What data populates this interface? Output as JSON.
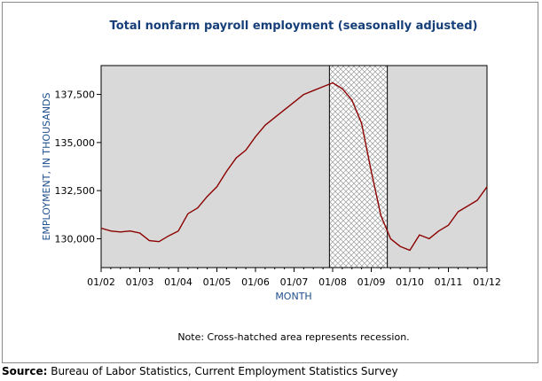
{
  "chart_data": {
    "type": "line",
    "title": "Total nonfarm payroll employment (seasonally adjusted)",
    "xlabel": "MONTH",
    "ylabel": "EMPLOYMENT, IN THOUSANDS",
    "x_tick_labels": [
      "01/02",
      "01/03",
      "01/04",
      "01/05",
      "01/06",
      "01/07",
      "01/08",
      "01/09",
      "01/10",
      "01/11",
      "01/12"
    ],
    "y_ticks": [
      130000,
      132500,
      135000,
      137500
    ],
    "y_tick_labels": [
      "130,000",
      "132,500",
      "135,000",
      "137,500"
    ],
    "xlim": [
      "2002-01",
      "2012-01"
    ],
    "ylim": [
      128500,
      139000
    ],
    "grid": false,
    "plot_background": "#d9d9d9",
    "line_color": "#8b0000",
    "recession": {
      "start": "2007-12",
      "end": "2009-06",
      "pattern": "cross-hatched"
    },
    "series": [
      {
        "x": [
          "2002-01",
          "2002-04",
          "2002-07",
          "2002-10",
          "2003-01",
          "2003-04",
          "2003-07",
          "2003-10",
          "2004-01",
          "2004-04",
          "2004-07",
          "2004-10",
          "2005-01",
          "2005-04",
          "2005-07",
          "2005-10",
          "2006-01",
          "2006-04",
          "2006-07",
          "2006-10",
          "2007-01",
          "2007-04",
          "2007-07",
          "2007-10",
          "2008-01",
          "2008-04",
          "2008-07",
          "2008-10",
          "2009-01",
          "2009-04",
          "2009-07",
          "2009-10",
          "2010-01",
          "2010-04",
          "2010-07",
          "2010-10",
          "2011-01",
          "2011-04",
          "2011-07",
          "2011-10",
          "2012-01"
        ],
        "values": [
          130550,
          130400,
          130350,
          130400,
          130300,
          129900,
          129850,
          130150,
          130400,
          131300,
          131600,
          132200,
          132700,
          133500,
          134200,
          134600,
          135300,
          135900,
          136300,
          136700,
          137100,
          137500,
          137700,
          137900,
          138100,
          137800,
          137200,
          136000,
          133500,
          131200,
          130000,
          129600,
          129400,
          130200,
          130000,
          130400,
          130700,
          131400,
          131700,
          132000,
          132700
        ]
      }
    ],
    "note": "Note: Cross-hatched area represents recession."
  },
  "source": {
    "label": "Source:",
    "text": " Bureau of Labor Statistics, Current Employment Statistics Survey"
  }
}
